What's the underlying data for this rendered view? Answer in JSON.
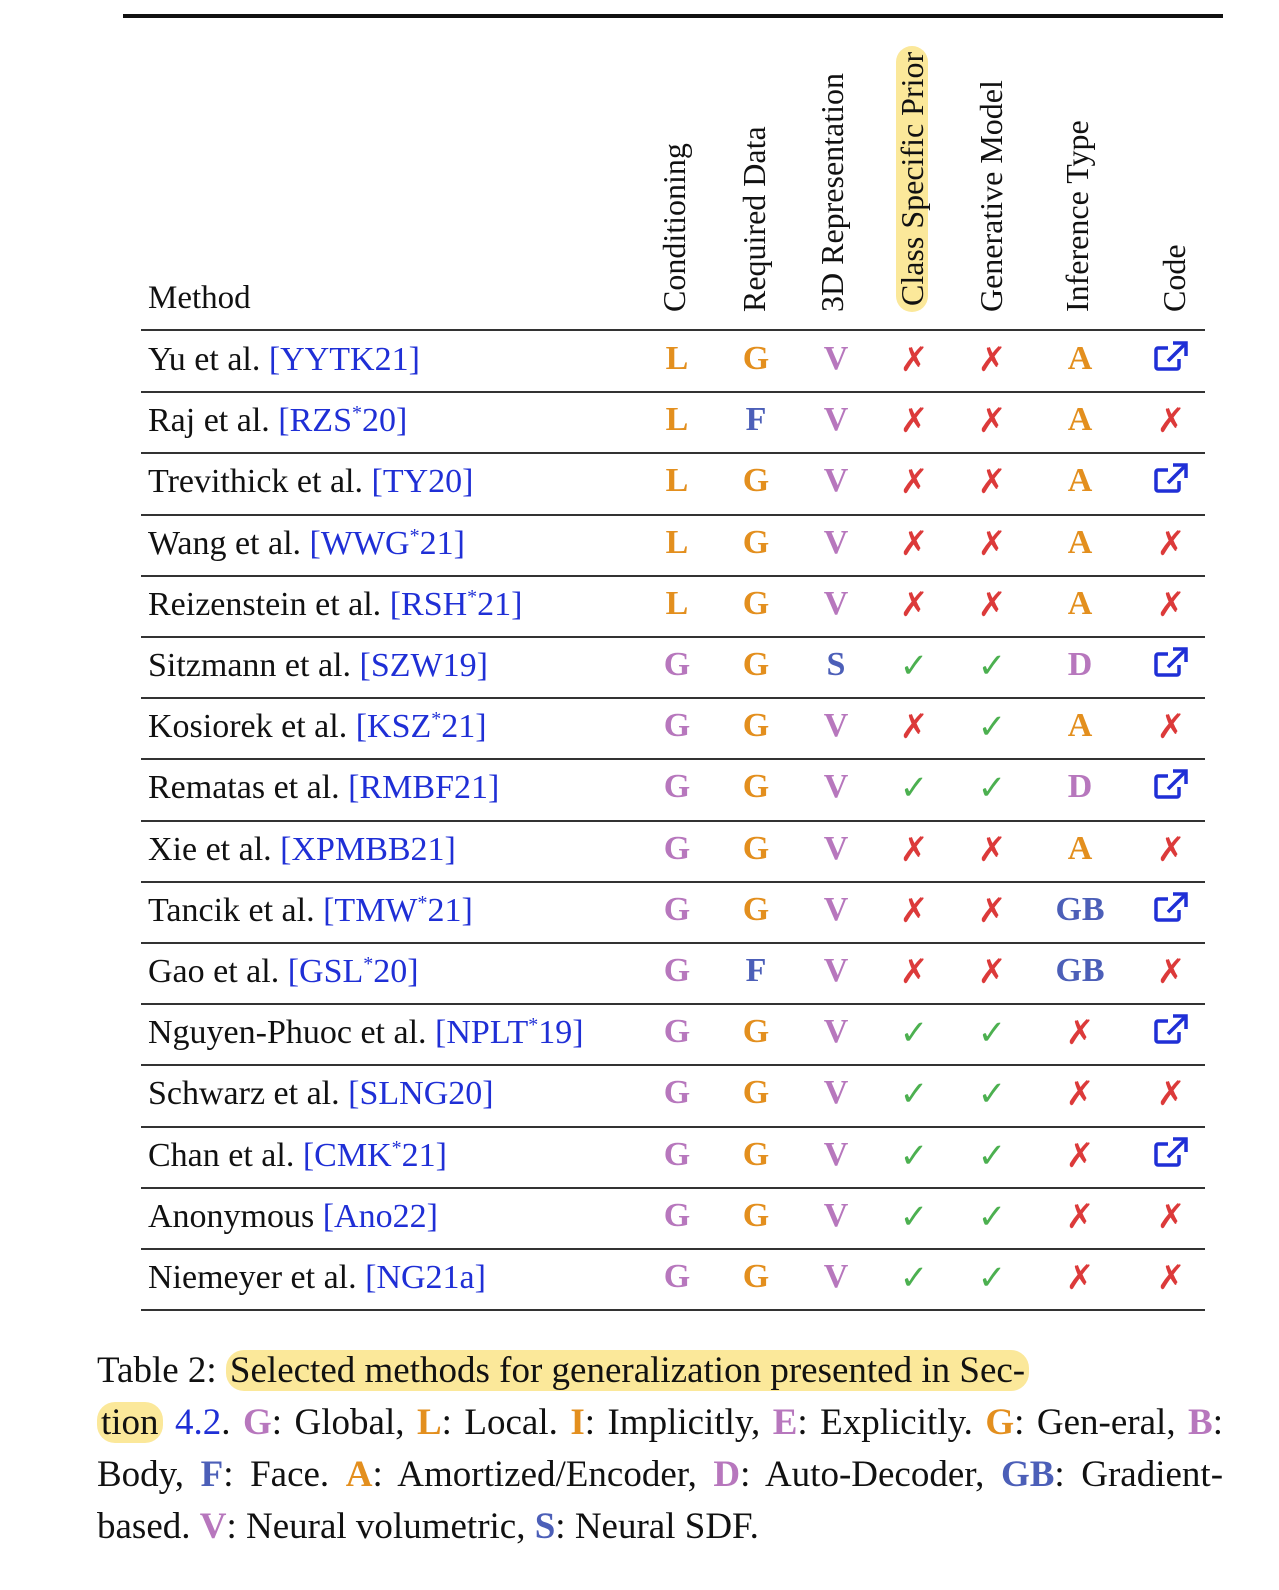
{
  "table": {
    "method_header": "Method",
    "columns": [
      {
        "label": "Conditioning",
        "highlight": false
      },
      {
        "label": "Required Data",
        "highlight": false
      },
      {
        "label": "3D Representation",
        "highlight": false
      },
      {
        "label": "Class Specific Prior",
        "highlight": true
      },
      {
        "label": "Generative Model",
        "highlight": false
      },
      {
        "label": "Inference Type",
        "highlight": false
      },
      {
        "label": "Code",
        "highlight": false
      }
    ],
    "rows": [
      {
        "author": "Yu et al.",
        "cite": "YYTK21",
        "cite_sup": "",
        "cells": [
          "L",
          "G",
          "V",
          "✗",
          "✗",
          "A",
          "link"
        ]
      },
      {
        "author": "Raj et al.",
        "cite": "RZS",
        "cite_sup": "*",
        "cite_tail": "20",
        "cells": [
          "L",
          "F",
          "V",
          "✗",
          "✗",
          "A",
          "✗"
        ]
      },
      {
        "author": "Trevithick et al.",
        "cite": "TY20",
        "cite_sup": "",
        "cells": [
          "L",
          "G",
          "V",
          "✗",
          "✗",
          "A",
          "link"
        ]
      },
      {
        "author": "Wang et al.",
        "cite": "WWG",
        "cite_sup": "*",
        "cite_tail": "21",
        "cells": [
          "L",
          "G",
          "V",
          "✗",
          "✗",
          "A",
          "✗"
        ]
      },
      {
        "author": "Reizenstein et al.",
        "cite": "RSH",
        "cite_sup": "*",
        "cite_tail": "21",
        "cells": [
          "L",
          "G",
          "V",
          "✗",
          "✗",
          "A",
          "✗"
        ]
      },
      {
        "author": "Sitzmann et al.",
        "cite": "SZW19",
        "cite_sup": "",
        "cells": [
          "G",
          "G",
          "S",
          "✓",
          "✓",
          "D",
          "link"
        ]
      },
      {
        "author": "Kosiorek et al.",
        "cite": "KSZ",
        "cite_sup": "*",
        "cite_tail": "21",
        "cells": [
          "G",
          "G",
          "V",
          "✗",
          "✓",
          "A",
          "✗"
        ]
      },
      {
        "author": "Rematas et al.",
        "cite": "RMBF21",
        "cite_sup": "",
        "cells": [
          "G",
          "G",
          "V",
          "✓",
          "✓",
          "D",
          "link"
        ]
      },
      {
        "author": "Xie et al.",
        "cite": "XPMBB21",
        "cite_sup": "",
        "cells": [
          "G",
          "G",
          "V",
          "✗",
          "✗",
          "A",
          "✗"
        ]
      },
      {
        "author": "Tancik et al.",
        "cite": "TMW",
        "cite_sup": "*",
        "cite_tail": "21",
        "cells": [
          "G",
          "G",
          "V",
          "✗",
          "✗",
          "GB",
          "link"
        ]
      },
      {
        "author": "Gao et al.",
        "cite": "GSL",
        "cite_sup": "*",
        "cite_tail": "20",
        "cells": [
          "G",
          "F",
          "V",
          "✗",
          "✗",
          "GB",
          "✗"
        ]
      },
      {
        "author": "Nguyen-Phuoc et al.",
        "cite": "NPLT",
        "cite_sup": "*",
        "cite_tail": "19",
        "cells": [
          "G",
          "G",
          "V",
          "✓",
          "✓",
          "✗",
          "link"
        ]
      },
      {
        "author": "Schwarz et al.",
        "cite": "SLNG20",
        "cite_sup": "",
        "cells": [
          "G",
          "G",
          "V",
          "✓",
          "✓",
          "✗",
          "✗"
        ]
      },
      {
        "author": "Chan et al.",
        "cite": "CMK",
        "cite_sup": "*",
        "cite_tail": "21",
        "cells": [
          "G",
          "G",
          "V",
          "✓",
          "✓",
          "✗",
          "link"
        ]
      },
      {
        "author": "Anonymous",
        "cite": "Ano22",
        "cite_sup": "",
        "cells": [
          "G",
          "G",
          "V",
          "✓",
          "✓",
          "✗",
          "✗"
        ]
      },
      {
        "author": "Niemeyer et al.",
        "cite": "NG21a",
        "cite_sup": "",
        "cells": [
          "G",
          "G",
          "V",
          "✓",
          "✓",
          "✗",
          "✗"
        ]
      }
    ],
    "code_link_icon": "external-link-icon"
  },
  "colors": {
    "orange": "#e38f1e",
    "purple": "#b777bd",
    "blue": "#4c5fb8",
    "red": "#dc3a3a",
    "green": "#4cb050",
    "link": "#1f2fd6",
    "highlight": "#fbe89a"
  },
  "caption": {
    "label": "Table 2:",
    "highlight_a": "Selected methods for generalization presented in Sec-",
    "highlight_b": "tion",
    "ref": "4.2",
    "after_ref": ".",
    "legend": [
      {
        "key": "G",
        "text": ": Global,"
      },
      {
        "key": "L",
        "text": ": Local."
      },
      {
        "key": "I",
        "text": ": Implicitly,"
      },
      {
        "key": "E",
        "text": ": Explicitly."
      },
      {
        "key": "G",
        "text": ": Gen-eral,"
      },
      {
        "key": "B",
        "text": ": Body,"
      },
      {
        "key": "F",
        "text": ": Face."
      },
      {
        "key": "A",
        "text": ": Amortized/Encoder,"
      },
      {
        "key": "D",
        "text": ": Auto-Decoder,"
      },
      {
        "key": "GB",
        "text": ": Gradient-based."
      },
      {
        "key": "V",
        "text": ": Neural volumetric,"
      },
      {
        "key": "S",
        "text": ": Neural SDF."
      }
    ]
  }
}
